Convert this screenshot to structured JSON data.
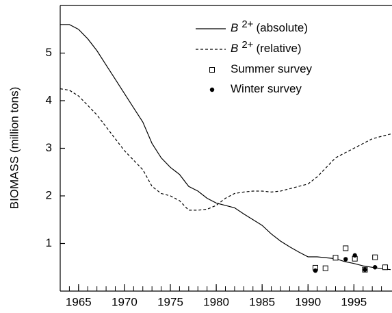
{
  "chart_data": {
    "type": "line",
    "y_label": "BIOMASS (million tons)",
    "xlim": [
      1963,
      1999
    ],
    "ylim": [
      0,
      6
    ],
    "xticks": [
      1965,
      1970,
      1975,
      1980,
      1985,
      1990,
      1995
    ],
    "x_minor_ticks": [
      1964,
      1965,
      1966,
      1967,
      1968,
      1969,
      1970,
      1971,
      1972,
      1973,
      1974,
      1975,
      1976,
      1977,
      1978,
      1979,
      1980,
      1981,
      1982,
      1983,
      1984,
      1985,
      1986,
      1987,
      1988,
      1989,
      1990,
      1991,
      1992,
      1993,
      1994,
      1995,
      1996,
      1997,
      1998
    ],
    "yticks": [
      1,
      2,
      3,
      4,
      5
    ],
    "series": [
      {
        "name": [
          "B",
          "2+",
          "(absolute)"
        ],
        "style": "solid",
        "color": "#000000",
        "x": [
          1963,
          1964,
          1965,
          1966,
          1967,
          1968,
          1969,
          1970,
          1971,
          1972,
          1973,
          1974,
          1975,
          1976,
          1977,
          1978,
          1979,
          1980,
          1981,
          1982,
          1983,
          1984,
          1985,
          1986,
          1987,
          1988,
          1989,
          1990,
          1991,
          1992,
          1993,
          1994,
          1995,
          1996,
          1997,
          1998,
          1999
        ],
        "values": [
          5.6,
          5.6,
          5.5,
          5.3,
          5.05,
          4.75,
          4.45,
          4.15,
          3.85,
          3.55,
          3.1,
          2.8,
          2.6,
          2.45,
          2.2,
          2.1,
          1.95,
          1.85,
          1.8,
          1.75,
          1.62,
          1.5,
          1.38,
          1.2,
          1.05,
          0.93,
          0.82,
          0.72,
          0.72,
          0.7,
          0.68,
          0.62,
          0.58,
          0.53,
          0.5,
          0.47,
          0.45
        ]
      },
      {
        "name": [
          "B",
          "2+",
          "(relative)"
        ],
        "style": "dashed",
        "color": "#000000",
        "x": [
          1963,
          1964,
          1965,
          1966,
          1967,
          1968,
          1969,
          1970,
          1971,
          1972,
          1973,
          1974,
          1975,
          1976,
          1977,
          1978,
          1979,
          1980,
          1981,
          1982,
          1983,
          1984,
          1985,
          1986,
          1987,
          1988,
          1989,
          1990,
          1991,
          1992,
          1993,
          1994,
          1995,
          1996,
          1997,
          1998,
          1999
        ],
        "values": [
          4.25,
          4.22,
          4.1,
          3.9,
          3.7,
          3.45,
          3.2,
          2.95,
          2.75,
          2.55,
          2.2,
          2.05,
          2.0,
          1.9,
          1.7,
          1.7,
          1.72,
          1.8,
          1.95,
          2.05,
          2.08,
          2.1,
          2.1,
          2.08,
          2.1,
          2.15,
          2.2,
          2.25,
          2.4,
          2.6,
          2.8,
          2.9,
          3.0,
          3.1,
          3.2,
          3.25,
          3.3
        ]
      },
      {
        "name": [
          "Summer survey"
        ],
        "style": "square",
        "color": "#000000",
        "x": [
          1990.8,
          1991.9,
          1993,
          1994.1,
          1995.1,
          1996.2,
          1997.3,
          1998.4
        ],
        "values": [
          0.49,
          0.48,
          0.7,
          0.9,
          0.68,
          0.45,
          0.71,
          0.5
        ]
      },
      {
        "name": [
          "Winter survey"
        ],
        "style": "dot",
        "color": "#000000",
        "x": [
          1990.8,
          1994.1,
          1995.1,
          1996.2,
          1997.3
        ],
        "values": [
          0.43,
          0.67,
          0.75,
          0.45,
          0.5
        ]
      }
    ]
  }
}
